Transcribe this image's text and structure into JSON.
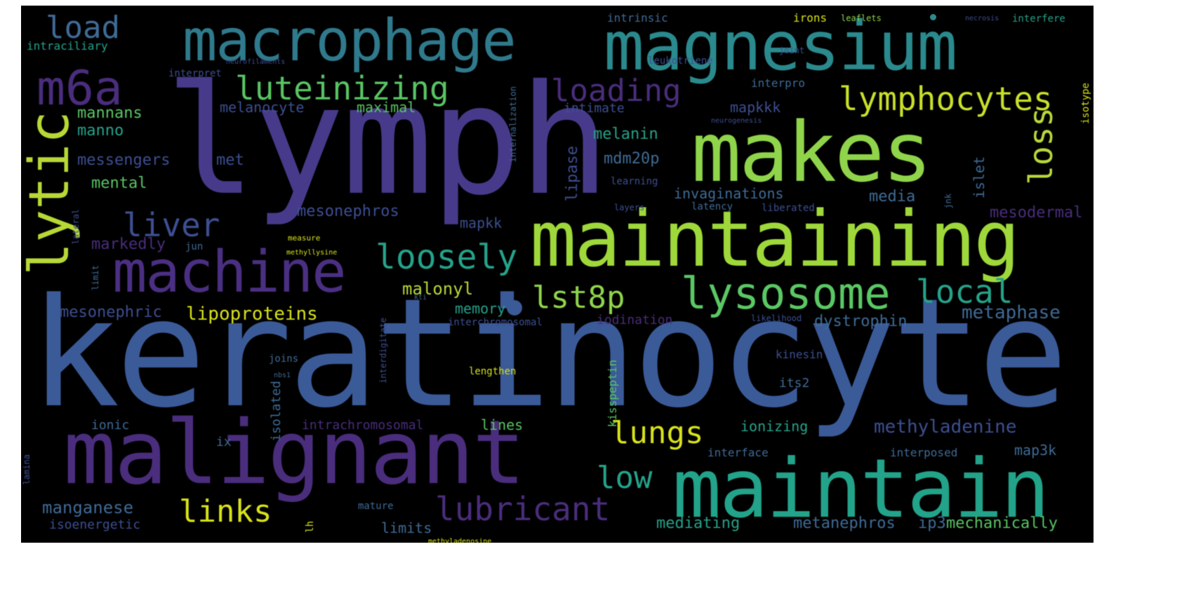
{
  "palette": {
    "background": "#000000",
    "purple": "#46327e",
    "violet": "#472d7b",
    "blue": "#365c8d",
    "teal": "#277f8e",
    "green_teal": "#1fa187",
    "green": "#4ac16d",
    "lime": "#a0da39",
    "yellow": "#d8e219"
  },
  "words": {
    "keratinocyte": "keratinocyte",
    "lymph": "lymph",
    "magnesium": "magnesium",
    "macrophage": "macrophage",
    "makes": "makes",
    "maintaining": "maintaining",
    "malignant": "malignant",
    "maintain": "maintain",
    "machine": "machine",
    "lytic": "lytic",
    "m6a": "m6a",
    "lysosome": "lysosome",
    "lymphocytes": "lymphocytes",
    "luteinizing": "luteinizing",
    "loading": "loading",
    "loosely": "loosely",
    "liver": "liver",
    "load": "load",
    "loss": "loss",
    "local": "local",
    "lst8p": "lst8p",
    "lungs": "lungs",
    "lubricant": "lubricant",
    "links": "links",
    "low": "low",
    "methyladenine": "methyladenine",
    "mannans": "mannans",
    "manno": "manno",
    "messengers": "messengers",
    "met": "met",
    "mental": "mental",
    "mesonephros": "mesonephros",
    "markedly": "markedly",
    "malonyl": "malonyl",
    "memory": "memory",
    "mesonephric": "mesonephric",
    "lipoproteins": "lipoproteins",
    "melanocyte": "melanocyte",
    "maximal": "maximal",
    "intimate": "intimate",
    "mapkkk": "mapkkk",
    "melanin": "melanin",
    "mdm20p": "mdm20p",
    "lipase": "lipase",
    "invaginations": "invaginations",
    "media": "media",
    "mesodermal": "mesodermal",
    "metaphase": "metaphase",
    "dystrophin": "dystrophin",
    "iodination": "iodination",
    "mapkk": "mapkk",
    "islet": "islet",
    "manganese": "manganese",
    "mediating": "mediating",
    "metanephros": "metanephros",
    "ip3": "ip3",
    "mechanically": "mechanically",
    "limits": "limits",
    "isoenergetic": "isoenergetic",
    "ionic": "ionic",
    "intrachromosomal": "intrachromosomal",
    "lines": "lines",
    "ionizing": "ionizing",
    "interface": "interface",
    "interposed": "interposed",
    "map3k": "map3k",
    "isolated": "isolated",
    "its2": "its2",
    "kinesin": "kinesin",
    "kisspeptin": "kisspeptin",
    "intrinsic": "intrinsic",
    "irons": "irons",
    "intraciliary": "intraciliary",
    "interpret": "interpret",
    "interpro": "interpro",
    "leukotriene": "leukotriene",
    "internalization": "internalization",
    "interchromosomal": "interchromosomal",
    "interdigitate": "interdigitate",
    "lengthen": "lengthen",
    "joins": "joins",
    "jun": "jun",
    "ix": "ix",
    "lateral": "lateral",
    "lamina": "lamina",
    "learning": "learning",
    "latency": "latency",
    "layers": "layers",
    "liberated": "liberated",
    "likelihood": "likelihood",
    "jnk": "jnk",
    "isotype": "isotype",
    "intertere": "interfere",
    "joint": "joint",
    "mature": "mature",
    "lh": "lh",
    "limit": "limit",
    "leaflets": "leaflets",
    "necrosis": "necrosis",
    "neurofilaments": "neurofilaments",
    "neurogenesis": "neurogenesis",
    "measure": "measure",
    "methyllysine": "methyllysine",
    "methyladenosine": "methyladenosine",
    "kti": "kti",
    "nbs1": "nbs1"
  }
}
